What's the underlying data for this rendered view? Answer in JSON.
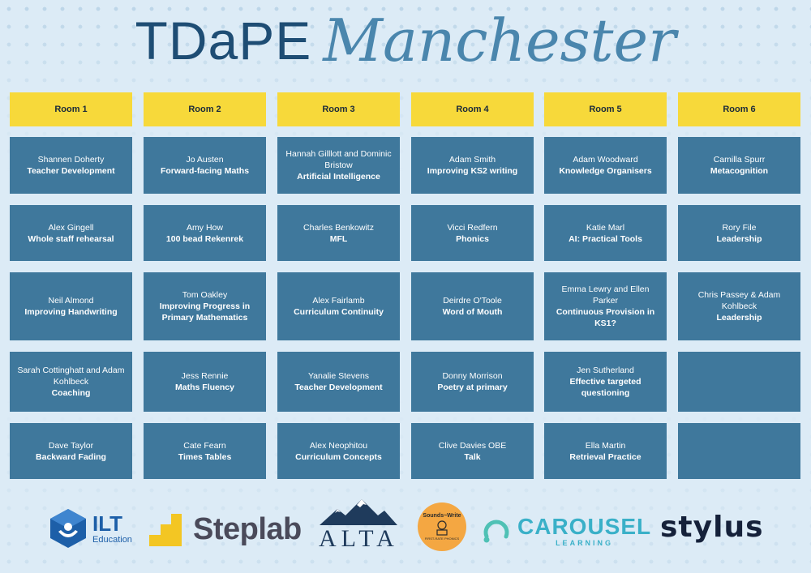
{
  "header": {
    "title_main": "TDaPE",
    "title_script": "Manchester"
  },
  "rooms": [
    "Room 1",
    "Room 2",
    "Room 3",
    "Room 4",
    "Room 5",
    "Room 6"
  ],
  "sessions": [
    [
      {
        "speaker": "Shannen Doherty",
        "topic": "Teacher Development"
      },
      {
        "speaker": "Jo Austen",
        "topic": "Forward-facing Maths"
      },
      {
        "speaker": "Hannah Gilllott and Dominic Bristow",
        "topic": "Artificial Intelligence"
      },
      {
        "speaker": "Adam Smith",
        "topic": "Improving KS2 writing"
      },
      {
        "speaker": "Adam Woodward",
        "topic": "Knowledge Organisers"
      },
      {
        "speaker": "Camilla Spurr",
        "topic": "Metacognition"
      }
    ],
    [
      {
        "speaker": "Alex Gingell",
        "topic": "Whole staff rehearsal"
      },
      {
        "speaker": "Amy How",
        "topic": "100 bead Rekenrek"
      },
      {
        "speaker": "Charles Benkowitz",
        "topic": "MFL"
      },
      {
        "speaker": "Vicci Redfern",
        "topic": "Phonics"
      },
      {
        "speaker": "Katie Marl",
        "topic": "AI: Practical Tools"
      },
      {
        "speaker": "Rory File",
        "topic": "Leadership"
      }
    ],
    [
      {
        "speaker": "Neil Almond",
        "topic": "Improving Handwriting"
      },
      {
        "speaker": "Tom Oakley",
        "topic": "Improving Progress in Primary Mathematics"
      },
      {
        "speaker": "Alex Fairlamb",
        "topic": "Curriculum Continuity"
      },
      {
        "speaker": "Deirdre O'Toole",
        "topic": "Word of Mouth"
      },
      {
        "speaker": "Emma Lewry and Ellen Parker",
        "topic": "Continuous Provision in KS1?"
      },
      {
        "speaker": "Chris Passey & Adam Kohlbeck",
        "topic": "Leadership"
      }
    ],
    [
      {
        "speaker": "Sarah Cottinghatt and Adam Kohlbeck",
        "topic": "Coaching"
      },
      {
        "speaker": "Jess Rennie",
        "topic": "Maths Fluency"
      },
      {
        "speaker": "Yanalie Stevens",
        "topic": "Teacher Development"
      },
      {
        "speaker": "Donny Morrison",
        "topic": "Poetry at primary"
      },
      {
        "speaker": "Jen Sutherland",
        "topic": "Effective targeted questioning"
      },
      {
        "speaker": "",
        "topic": ""
      }
    ],
    [
      {
        "speaker": "Dave Taylor",
        "topic": "Backward Fading"
      },
      {
        "speaker": "Cate Fearn",
        "topic": "Times Tables"
      },
      {
        "speaker": "Alex Neophitou",
        "topic": "Curriculum Concepts"
      },
      {
        "speaker": "Clive Davies OBE",
        "topic": "Talk"
      },
      {
        "speaker": "Ella Martin",
        "topic": "Retrieval Practice"
      },
      {
        "speaker": "",
        "topic": ""
      }
    ]
  ],
  "sponsors": {
    "ilt": {
      "name": "ILT",
      "sub": "Education"
    },
    "steplab": {
      "name": "Steplab"
    },
    "alta": {
      "name": "ALTA"
    },
    "sounds_write": {
      "name": "Sounds~Write",
      "sub": "FIRST-RATE PHONICS"
    },
    "carousel": {
      "name": "CAROUSEL",
      "sub": "LEARNING"
    },
    "stylus": {
      "name": "stylus"
    }
  },
  "colors": {
    "background": "#dcebf6",
    "room_header": "#f7d93a",
    "cell": "#3f789c",
    "title_dark": "#1e4d74",
    "title_script": "#4a86ad"
  }
}
